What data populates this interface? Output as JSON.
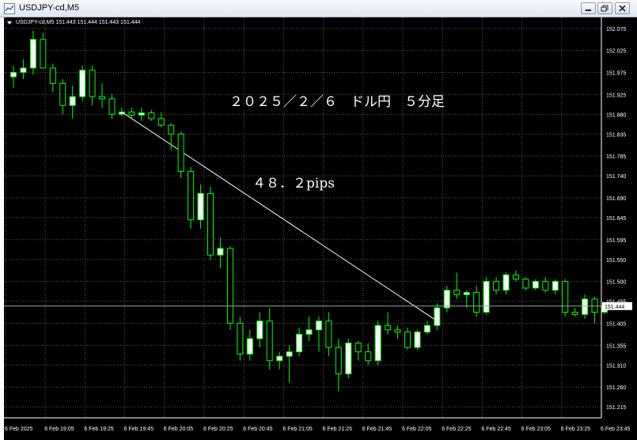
{
  "window": {
    "title": "USDJPY-cd,M5"
  },
  "chart_header": {
    "info": "USDJPY-cd,M5  151.443 151.444 151.443 151.444"
  },
  "annotations": {
    "title_text": "２０２５／２／６　ドル円　５分足",
    "pips_text": "４８．２pips"
  },
  "colors": {
    "background": "#000000",
    "grid": "#5a5a5a",
    "bull_fill": "#ffffff",
    "bear_fill": "#000000",
    "wick": "#00ff00",
    "text": "#ffffff",
    "bid_line": "#a0a0a0"
  },
  "chart_data": {
    "type": "candlestick",
    "symbol": "USDJPY-cd",
    "timeframe": "M5",
    "current_price": "151.444",
    "y_ticks": [
      "152.075",
      "152.025",
      "151.975",
      "151.925",
      "151.880",
      "151.835",
      "151.785",
      "151.740",
      "151.690",
      "151.645",
      "151.595",
      "151.550",
      "151.500",
      "151.455",
      "151.405",
      "151.355",
      "151.310",
      "151.260",
      "151.215"
    ],
    "x_ticks": [
      "6 Feb 2025",
      "6 Feb 19:05",
      "6 Feb 19:25",
      "6 Feb 19:45",
      "6 Feb 20:05",
      "6 Feb 20:25",
      "6 Feb 20:45",
      "6 Feb 21:05",
      "6 Feb 21:25",
      "6 Feb 21:45",
      "6 Feb 22:05",
      "6 Feb 22:25",
      "6 Feb 22:45",
      "6 Feb 23:05",
      "6 Feb 23:25",
      "6 Feb 23:45"
    ],
    "ylim": [
      151.19,
      152.1
    ],
    "candles": [
      {
        "o": 151.965,
        "h": 151.99,
        "l": 151.94,
        "c": 151.975
      },
      {
        "o": 151.975,
        "h": 152.005,
        "l": 151.96,
        "c": 151.985
      },
      {
        "o": 151.985,
        "h": 152.07,
        "l": 151.97,
        "c": 152.05
      },
      {
        "o": 152.05,
        "h": 152.065,
        "l": 151.985,
        "c": 151.985
      },
      {
        "o": 151.985,
        "h": 151.995,
        "l": 151.93,
        "c": 151.95
      },
      {
        "o": 151.95,
        "h": 151.96,
        "l": 151.88,
        "c": 151.9
      },
      {
        "o": 151.9,
        "h": 151.945,
        "l": 151.87,
        "c": 151.92
      },
      {
        "o": 151.92,
        "h": 151.99,
        "l": 151.91,
        "c": 151.98
      },
      {
        "o": 151.98,
        "h": 151.99,
        "l": 151.9,
        "c": 151.92
      },
      {
        "o": 151.92,
        "h": 151.95,
        "l": 151.895,
        "c": 151.915
      },
      {
        "o": 151.915,
        "h": 151.925,
        "l": 151.87,
        "c": 151.88
      },
      {
        "o": 151.88,
        "h": 151.895,
        "l": 151.875,
        "c": 151.885
      },
      {
        "o": 151.885,
        "h": 151.895,
        "l": 151.87,
        "c": 151.878
      },
      {
        "o": 151.878,
        "h": 151.895,
        "l": 151.865,
        "c": 151.883
      },
      {
        "o": 151.883,
        "h": 151.89,
        "l": 151.865,
        "c": 151.87
      },
      {
        "o": 151.87,
        "h": 151.885,
        "l": 151.85,
        "c": 151.855
      },
      {
        "o": 151.855,
        "h": 151.86,
        "l": 151.8,
        "c": 151.835
      },
      {
        "o": 151.835,
        "h": 151.84,
        "l": 151.735,
        "c": 151.75
      },
      {
        "o": 151.75,
        "h": 151.76,
        "l": 151.62,
        "c": 151.64
      },
      {
        "o": 151.64,
        "h": 151.72,
        "l": 151.62,
        "c": 151.7
      },
      {
        "o": 151.7,
        "h": 151.715,
        "l": 151.55,
        "c": 151.56
      },
      {
        "o": 151.56,
        "h": 151.6,
        "l": 151.53,
        "c": 151.575
      },
      {
        "o": 151.575,
        "h": 151.58,
        "l": 151.39,
        "c": 151.405
      },
      {
        "o": 151.405,
        "h": 151.42,
        "l": 151.32,
        "c": 151.335
      },
      {
        "o": 151.335,
        "h": 151.39,
        "l": 151.32,
        "c": 151.37
      },
      {
        "o": 151.37,
        "h": 151.43,
        "l": 151.35,
        "c": 151.41
      },
      {
        "o": 151.41,
        "h": 151.44,
        "l": 151.3,
        "c": 151.32
      },
      {
        "o": 151.32,
        "h": 151.34,
        "l": 151.3,
        "c": 151.33
      },
      {
        "o": 151.33,
        "h": 151.355,
        "l": 151.27,
        "c": 151.34
      },
      {
        "o": 151.34,
        "h": 151.395,
        "l": 151.33,
        "c": 151.38
      },
      {
        "o": 151.38,
        "h": 151.42,
        "l": 151.365,
        "c": 151.39
      },
      {
        "o": 151.39,
        "h": 151.42,
        "l": 151.34,
        "c": 151.41
      },
      {
        "o": 151.41,
        "h": 151.43,
        "l": 151.33,
        "c": 151.35
      },
      {
        "o": 151.35,
        "h": 151.37,
        "l": 151.25,
        "c": 151.29
      },
      {
        "o": 151.29,
        "h": 151.37,
        "l": 151.28,
        "c": 151.36
      },
      {
        "o": 151.36,
        "h": 151.365,
        "l": 151.32,
        "c": 151.34
      },
      {
        "o": 151.34,
        "h": 151.36,
        "l": 151.31,
        "c": 151.32
      },
      {
        "o": 151.32,
        "h": 151.41,
        "l": 151.31,
        "c": 151.4
      },
      {
        "o": 151.4,
        "h": 151.43,
        "l": 151.38,
        "c": 151.39
      },
      {
        "o": 151.39,
        "h": 151.4,
        "l": 151.37,
        "c": 151.385
      },
      {
        "o": 151.385,
        "h": 151.395,
        "l": 151.345,
        "c": 151.35
      },
      {
        "o": 151.35,
        "h": 151.39,
        "l": 151.345,
        "c": 151.385
      },
      {
        "o": 151.385,
        "h": 151.41,
        "l": 151.38,
        "c": 151.4
      },
      {
        "o": 151.4,
        "h": 151.45,
        "l": 151.39,
        "c": 151.44
      },
      {
        "o": 151.44,
        "h": 151.49,
        "l": 151.43,
        "c": 151.48
      },
      {
        "o": 151.48,
        "h": 151.52,
        "l": 151.46,
        "c": 151.47
      },
      {
        "o": 151.47,
        "h": 151.48,
        "l": 151.44,
        "c": 151.475
      },
      {
        "o": 151.475,
        "h": 151.49,
        "l": 151.42,
        "c": 151.43
      },
      {
        "o": 151.43,
        "h": 151.51,
        "l": 151.425,
        "c": 151.5
      },
      {
        "o": 151.5,
        "h": 151.51,
        "l": 151.47,
        "c": 151.48
      },
      {
        "o": 151.48,
        "h": 151.52,
        "l": 151.47,
        "c": 151.515
      },
      {
        "o": 151.515,
        "h": 151.525,
        "l": 151.5,
        "c": 151.505
      },
      {
        "o": 151.505,
        "h": 151.51,
        "l": 151.48,
        "c": 151.485
      },
      {
        "o": 151.485,
        "h": 151.505,
        "l": 151.48,
        "c": 151.5
      },
      {
        "o": 151.5,
        "h": 151.51,
        "l": 151.475,
        "c": 151.48
      },
      {
        "o": 151.48,
        "h": 151.505,
        "l": 151.47,
        "c": 151.5
      },
      {
        "o": 151.5,
        "h": 151.505,
        "l": 151.42,
        "c": 151.43
      },
      {
        "o": 151.43,
        "h": 151.44,
        "l": 151.42,
        "c": 151.425
      },
      {
        "o": 151.425,
        "h": 151.47,
        "l": 151.415,
        "c": 151.46
      },
      {
        "o": 151.46,
        "h": 151.465,
        "l": 151.405,
        "c": 151.43
      },
      {
        "o": 151.43,
        "h": 151.445,
        "l": 151.425,
        "c": 151.444
      }
    ],
    "trendline": {
      "from_index": 11,
      "from_price": 151.885,
      "to_index": 43,
      "to_price": 151.41
    }
  }
}
